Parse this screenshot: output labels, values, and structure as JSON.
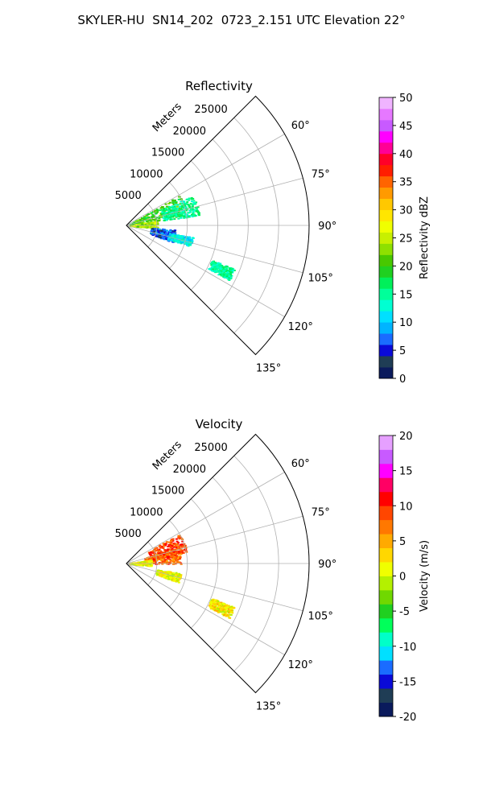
{
  "figure": {
    "title": "SKYLER-HU  SN14_202  0723_2.151 UTC Elevation 22°"
  },
  "chart_data": [
    {
      "type": "polar-sector",
      "title": "Reflectivity",
      "range_label": "Meters",
      "theta_range_deg": [
        45,
        135
      ],
      "r_max": 30000,
      "r_ticks": [
        5000,
        10000,
        15000,
        20000,
        25000
      ],
      "theta_ticks": [
        "60°",
        "75°",
        "90°",
        "105°",
        "120°",
        "135°"
      ],
      "theta_tick_values": [
        60,
        75,
        90,
        105,
        120,
        135
      ],
      "grid": true,
      "colorbar": {
        "label": "Reflectivity dBZ",
        "min": 0,
        "max": 50,
        "ticks": [
          0,
          5,
          10,
          15,
          20,
          25,
          30,
          35,
          40,
          45,
          50
        ],
        "colormap": "pyart_NWSRef-like",
        "stops": [
          [
            0,
            "#0a1a5c"
          ],
          [
            2,
            "#1f3d55"
          ],
          [
            4,
            "#0a0ad8"
          ],
          [
            6,
            "#1a6cff"
          ],
          [
            8,
            "#00b4ff"
          ],
          [
            10,
            "#00e0ff"
          ],
          [
            12,
            "#00ffd2"
          ],
          [
            14,
            "#00ff9a"
          ],
          [
            16,
            "#00f05a"
          ],
          [
            18,
            "#20d020"
          ],
          [
            20,
            "#48c800"
          ],
          [
            22,
            "#8ee000"
          ],
          [
            24,
            "#c8f000"
          ],
          [
            26,
            "#f0ff00"
          ],
          [
            28,
            "#ffe600"
          ],
          [
            30,
            "#ffc800"
          ],
          [
            32,
            "#ff9a00"
          ],
          [
            34,
            "#ff6400"
          ],
          [
            36,
            "#ff1e00"
          ],
          [
            38,
            "#ff0028"
          ],
          [
            40,
            "#ff0096"
          ],
          [
            42,
            "#ff00ff"
          ],
          [
            44,
            "#c85aff"
          ],
          [
            46,
            "#e678ff"
          ],
          [
            48,
            "#f0b4ff"
          ],
          [
            50,
            "#ffe6ff"
          ]
        ]
      },
      "echo_regions": [
        {
          "theta_range": [
            60,
            80
          ],
          "r_range": [
            500,
            10000
          ],
          "value": 20
        },
        {
          "theta_range": [
            65,
            82
          ],
          "r_range": [
            6000,
            12000
          ],
          "value": 15
        },
        {
          "theta_range": [
            80,
            95
          ],
          "r_range": [
            500,
            5000
          ],
          "value": 24
        },
        {
          "theta_range": [
            95,
            110
          ],
          "r_range": [
            4000,
            8000
          ],
          "value": 6
        },
        {
          "theta_range": [
            100,
            108
          ],
          "r_range": [
            7000,
            11000
          ],
          "value": 12
        },
        {
          "theta_range": [
            112,
            118
          ],
          "r_range": [
            15000,
            19000
          ],
          "value": 15
        }
      ]
    },
    {
      "type": "polar-sector",
      "title": "Velocity",
      "range_label": "Meters",
      "theta_range_deg": [
        45,
        135
      ],
      "r_max": 30000,
      "r_ticks": [
        5000,
        10000,
        15000,
        20000,
        25000
      ],
      "theta_ticks": [
        "60°",
        "75°",
        "90°",
        "105°",
        "120°",
        "135°"
      ],
      "theta_tick_values": [
        60,
        75,
        90,
        105,
        120,
        135
      ],
      "grid": true,
      "colorbar": {
        "label": "Velocity (m/s)",
        "min": -20,
        "max": 20,
        "ticks": [
          -20,
          -15,
          -10,
          -5,
          0,
          5,
          10,
          15,
          20
        ],
        "colormap": "pyart_BuDRd-like",
        "stops": [
          [
            -20,
            "#0a1a5c"
          ],
          [
            -18,
            "#1f3d55"
          ],
          [
            -16,
            "#0a0ad8"
          ],
          [
            -14,
            "#1a6cff"
          ],
          [
            -12,
            "#00e0ff"
          ],
          [
            -10,
            "#00ffc8"
          ],
          [
            -8,
            "#00ff5a"
          ],
          [
            -6,
            "#20d020"
          ],
          [
            -4,
            "#70d800"
          ],
          [
            -2,
            "#b4f000"
          ],
          [
            0,
            "#f0ff00"
          ],
          [
            2,
            "#ffd700"
          ],
          [
            4,
            "#ffaa00"
          ],
          [
            6,
            "#ff7800"
          ],
          [
            8,
            "#ff4600"
          ],
          [
            10,
            "#ff0000"
          ],
          [
            12,
            "#ff0064"
          ],
          [
            14,
            "#ff00ff"
          ],
          [
            16,
            "#c85aff"
          ],
          [
            18,
            "#e6a0ff"
          ],
          [
            20,
            "#ffe6ff"
          ]
        ]
      },
      "echo_regions": [
        {
          "theta_range": [
            60,
            80
          ],
          "r_range": [
            4000,
            10000
          ],
          "value": 9
        },
        {
          "theta_range": [
            72,
            90
          ],
          "r_range": [
            3000,
            9000
          ],
          "value": 8
        },
        {
          "theta_range": [
            80,
            95
          ],
          "r_range": [
            500,
            4000
          ],
          "value": 1
        },
        {
          "theta_range": [
            100,
            110
          ],
          "r_range": [
            5000,
            9000
          ],
          "value": 1
        },
        {
          "theta_range": [
            112,
            118
          ],
          "r_range": [
            15000,
            19000
          ],
          "value": 2
        }
      ]
    }
  ]
}
